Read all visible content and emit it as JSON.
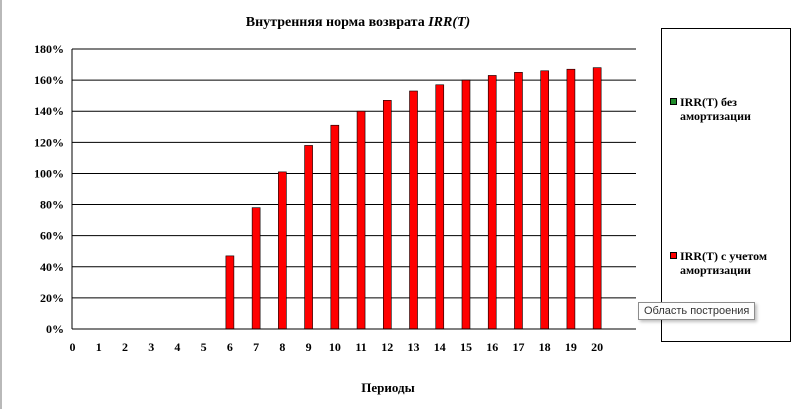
{
  "colors": {
    "series1": "#1f8b2b",
    "series2": "#ff0000",
    "grid": "#000000"
  },
  "tooltip": "Область построения",
  "chart_data": {
    "type": "bar",
    "title_plain": "Внутренняя норма возврата ",
    "title_italic": "IRR(T)",
    "xlabel": "Периоды",
    "ylabel": "",
    "categories": [
      "0",
      "1",
      "2",
      "3",
      "4",
      "5",
      "6",
      "7",
      "8",
      "9",
      "10",
      "11",
      "12",
      "13",
      "14",
      "15",
      "16",
      "17",
      "18",
      "19",
      "20"
    ],
    "yticks": [
      "0%",
      "20%",
      "40%",
      "60%",
      "80%",
      "100%",
      "120%",
      "140%",
      "160%",
      "180%"
    ],
    "ylim": [
      0,
      180
    ],
    "grid": true,
    "legend_position": "right",
    "series": [
      {
        "name": "IRR(T) без амортизации",
        "color": "#1f8b2b",
        "values": [
          0,
          0,
          0,
          0,
          0,
          0,
          0,
          0,
          0,
          0,
          0,
          0,
          0,
          0,
          0,
          0,
          0,
          0,
          0,
          0,
          0
        ]
      },
      {
        "name": "IRR(T) с учетом амортизации",
        "color": "#ff0000",
        "values": [
          0,
          0,
          0,
          0,
          0,
          0,
          47,
          78,
          101,
          118,
          131,
          140,
          147,
          153,
          157,
          160,
          163,
          165,
          166,
          167,
          168
        ]
      }
    ]
  }
}
